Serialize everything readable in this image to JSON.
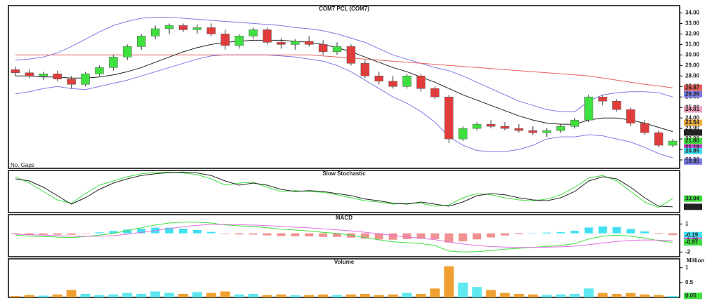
{
  "chart_data": [
    {
      "type": "candlestick",
      "title": "COM7  PCL  (COM7)",
      "note": "No. Gaps",
      "open": [
        28.6,
        28.3,
        28.0,
        28.2,
        27.7,
        27.2,
        28.2,
        28.8,
        29.8,
        30.8,
        31.8,
        32.5,
        32.8,
        32.4,
        32.6,
        32.0,
        30.9,
        31.8,
        32.4,
        31.2,
        31.0,
        31.3,
        31.0,
        30.3,
        30.8,
        29.2,
        28.0,
        27.5,
        27.0,
        28.0,
        26.8,
        26.0,
        22.0,
        23.0,
        23.4,
        23.2,
        23.0,
        22.8,
        22.6,
        22.8,
        23.2,
        23.8,
        26.0,
        25.6,
        24.8,
        23.5,
        22.6,
        21.4
      ],
      "high": [
        28.9,
        28.6,
        28.4,
        28.5,
        28.0,
        28.4,
        29.0,
        30.0,
        31.0,
        32.0,
        32.8,
        33.0,
        33.0,
        32.9,
        33.0,
        32.4,
        32.0,
        32.6,
        32.6,
        31.6,
        31.5,
        31.8,
        31.4,
        31.2,
        31.0,
        29.5,
        28.4,
        28.0,
        28.2,
        28.2,
        27.0,
        26.2,
        23.2,
        23.6,
        23.8,
        23.6,
        23.4,
        23.2,
        23.0,
        23.4,
        24.0,
        26.2,
        26.2,
        25.8,
        25.0,
        23.8,
        22.8,
        22.0
      ],
      "low": [
        28.0,
        27.8,
        27.6,
        27.5,
        26.8,
        27.0,
        28.0,
        28.5,
        29.5,
        30.5,
        31.5,
        32.0,
        32.2,
        32.0,
        31.8,
        30.5,
        30.6,
        31.5,
        31.0,
        30.6,
        30.5,
        30.8,
        30.0,
        30.0,
        29.0,
        27.8,
        27.2,
        26.8,
        26.8,
        26.5,
        25.8,
        21.6,
        21.8,
        22.8,
        23.0,
        22.8,
        22.6,
        22.4,
        22.2,
        22.6,
        23.0,
        23.6,
        25.2,
        24.6,
        23.2,
        22.4,
        21.2,
        21.2
      ],
      "close": [
        28.3,
        28.0,
        28.2,
        27.7,
        27.2,
        28.2,
        28.8,
        29.8,
        30.8,
        31.8,
        32.5,
        32.8,
        32.4,
        32.6,
        32.0,
        30.9,
        31.8,
        32.4,
        31.2,
        31.0,
        31.3,
        31.0,
        30.3,
        30.8,
        29.2,
        28.0,
        27.5,
        27.0,
        28.0,
        26.8,
        26.0,
        22.0,
        23.0,
        23.4,
        23.2,
        23.0,
        22.8,
        22.6,
        22.8,
        23.2,
        23.8,
        26.0,
        25.6,
        24.8,
        23.5,
        22.6,
        21.4,
        21.8
      ],
      "up_color": "#3ee03e",
      "down_color": "#e03c3c",
      "overlays": [
        {
          "color": "#7b7be6",
          "values": [
            29.5,
            29.6,
            29.8,
            30.2,
            30.8,
            31.5,
            32.2,
            32.8,
            33.2,
            33.5,
            33.6,
            33.6,
            33.5,
            33.4,
            33.3,
            33.2,
            33.1,
            33.0,
            32.9,
            32.8,
            32.6,
            32.5,
            32.3,
            32.0,
            31.6,
            31.2,
            30.6,
            30.0,
            29.6,
            29.2,
            28.8,
            28.5,
            28.0,
            27.4,
            26.8,
            26.2,
            25.6,
            25.2,
            24.8,
            24.6,
            24.6,
            25.6,
            26.2,
            26.4,
            26.5,
            26.5,
            26.4,
            26.0
          ]
        },
        {
          "color": "#7b7be6",
          "values": [
            26.3,
            26.5,
            26.8,
            27.0,
            26.8,
            26.7,
            27.0,
            27.3,
            27.6,
            28.0,
            28.4,
            28.8,
            29.2,
            29.6,
            29.9,
            30.0,
            30.0,
            30.0,
            30.0,
            29.9,
            29.8,
            29.6,
            29.4,
            29.0,
            28.4,
            27.6,
            26.8,
            26.0,
            25.4,
            24.6,
            23.6,
            22.2,
            21.4,
            20.9,
            20.8,
            20.8,
            21.0,
            21.4,
            22.0,
            22.2,
            22.2,
            22.4,
            22.3,
            22.0,
            21.7,
            21.2,
            20.6,
            20.2
          ]
        },
        {
          "color": "#e86060",
          "values": [
            30.0,
            30.0,
            30.0,
            30.0,
            30.0,
            30.0,
            30.0,
            30.0,
            30.0,
            30.0,
            30.0,
            30.0,
            30.0,
            30.0,
            30.0,
            30.0,
            30.0,
            30.0,
            30.0,
            30.0,
            30.0,
            30.0,
            29.9,
            29.8,
            29.7,
            29.6,
            29.5,
            29.4,
            29.3,
            29.2,
            29.1,
            29.0,
            28.9,
            28.8,
            28.7,
            28.6,
            28.5,
            28.4,
            28.3,
            28.2,
            28.1,
            28.0,
            27.8,
            27.6,
            27.4,
            27.2,
            27.05,
            26.87
          ]
        },
        {
          "color": "#222222",
          "values": [
            28.0,
            28.0,
            27.9,
            27.9,
            27.8,
            27.8,
            27.9,
            28.1,
            28.4,
            28.8,
            29.3,
            29.8,
            30.3,
            30.7,
            31.0,
            31.2,
            31.3,
            31.4,
            31.4,
            31.4,
            31.3,
            31.2,
            31.0,
            30.7,
            30.3,
            29.8,
            29.3,
            28.8,
            28.4,
            27.9,
            27.4,
            26.8,
            26.2,
            25.7,
            25.2,
            24.7,
            24.2,
            23.8,
            23.5,
            23.4,
            23.4,
            23.8,
            24.0,
            24.0,
            23.8,
            23.5,
            23.1,
            22.7
          ]
        }
      ],
      "ylim": [
        19.2,
        34.7
      ],
      "yticks": [
        {
          "value": 20,
          "label": "20.00"
        },
        {
          "value": 21,
          "label": "21.00"
        },
        {
          "value": 22,
          "label": "22.00"
        },
        {
          "value": 23,
          "label": "23.00"
        },
        {
          "value": 24,
          "label": "24.00"
        },
        {
          "value": 25,
          "label": "25.00"
        },
        {
          "value": 26,
          "label": "26.00"
        },
        {
          "value": 27,
          "label": "27.00"
        },
        {
          "value": 28,
          "label": "28.00"
        },
        {
          "value": 29,
          "label": "29.00"
        },
        {
          "value": 30,
          "label": "30.00"
        },
        {
          "value": 31,
          "label": "31.00"
        },
        {
          "value": 32,
          "label": "32.00"
        },
        {
          "value": 33,
          "label": "33.00"
        },
        {
          "value": 34,
          "label": "34.00"
        }
      ],
      "tags": [
        {
          "value": 26.87,
          "color": "#e86060"
        },
        {
          "value": 26.26,
          "color": "#7b7be6"
        },
        {
          "value": 24.81,
          "color": "#f0a0c0"
        },
        {
          "value": 23.54,
          "color": "#f0b040"
        },
        {
          "value": 22.61,
          "color": "#222222"
        },
        {
          "value": 21.8,
          "label": "21.80",
          "color": "#3ee03e"
        },
        {
          "value": 21.19,
          "color": "#d040d0"
        },
        {
          "value": 20.85,
          "color": "#40e0f0"
        },
        {
          "value": 19.85,
          "color": "#7b7be6"
        }
      ]
    },
    {
      "type": "line",
      "title": "Slow  Stochastic",
      "series": [
        {
          "color": "#3ee03e",
          "values": [
            85,
            70,
            50,
            30,
            22,
            45,
            65,
            75,
            85,
            92,
            95,
            96,
            94,
            90,
            80,
            65,
            70,
            72,
            60,
            50,
            52,
            50,
            48,
            42,
            35,
            28,
            25,
            20,
            22,
            22,
            15,
            18,
            35,
            45,
            42,
            35,
            30,
            28,
            32,
            42,
            60,
            82,
            88,
            75,
            50,
            25,
            12,
            33.04
          ]
        },
        {
          "color": "#222222",
          "values": [
            80,
            75,
            60,
            40,
            20,
            35,
            55,
            70,
            80,
            88,
            92,
            95,
            96,
            94,
            88,
            75,
            65,
            70,
            65,
            55,
            50,
            52,
            50,
            45,
            40,
            32,
            28,
            22,
            20,
            25,
            20,
            15,
            25,
            40,
            45,
            42,
            35,
            30,
            28,
            35,
            50,
            75,
            85,
            80,
            60,
            35,
            15,
            13.54
          ]
        }
      ],
      "ylim": [
        0,
        100
      ],
      "tags": [
        {
          "value": 33.04,
          "color": "#3ee03e"
        },
        {
          "value": 13.54,
          "color": "#222222"
        }
      ]
    },
    {
      "type": "macd",
      "title": "MACD",
      "series": [
        {
          "color": "#3ee03e",
          "values": [
            -0.2,
            -0.3,
            -0.35,
            -0.4,
            -0.45,
            -0.35,
            -0.2,
            0,
            0.3,
            0.6,
            0.9,
            1.1,
            1.2,
            1.2,
            1.1,
            0.9,
            0.8,
            0.75,
            0.6,
            0.45,
            0.35,
            0.25,
            0.1,
            0,
            -0.2,
            -0.45,
            -0.7,
            -0.9,
            -1.0,
            -1.1,
            -1.3,
            -1.9,
            -2.0,
            -1.95,
            -1.85,
            -1.7,
            -1.6,
            -1.5,
            -1.4,
            -1.3,
            -1.1,
            -0.6,
            -0.3,
            -0.2,
            -0.3,
            -0.5,
            -0.8,
            -0.97
          ]
        },
        {
          "color": "#e070e0",
          "values": [
            -0.1,
            -0.15,
            -0.2,
            -0.25,
            -0.3,
            -0.32,
            -0.3,
            -0.25,
            -0.1,
            0.1,
            0.3,
            0.5,
            0.7,
            0.85,
            0.95,
            0.95,
            0.92,
            0.88,
            0.82,
            0.74,
            0.66,
            0.58,
            0.48,
            0.38,
            0.26,
            0.12,
            -0.05,
            -0.22,
            -0.38,
            -0.52,
            -0.68,
            -0.92,
            -1.14,
            -1.3,
            -1.41,
            -1.47,
            -1.5,
            -1.5,
            -1.48,
            -1.44,
            -1.37,
            -1.22,
            -1.04,
            -0.87,
            -0.76,
            -0.71,
            -0.73,
            -0.78
          ]
        }
      ],
      "histogram": {
        "up_color": "#40e0f0",
        "down_color": "#f09090",
        "values": [
          -0.1,
          -0.15,
          -0.15,
          -0.15,
          -0.15,
          -0.03,
          0.1,
          0.25,
          0.4,
          0.5,
          0.6,
          0.6,
          0.5,
          0.35,
          0.15,
          -0.05,
          -0.12,
          -0.13,
          -0.22,
          -0.29,
          -0.31,
          -0.33,
          -0.38,
          -0.38,
          -0.46,
          -0.57,
          -0.65,
          -0.68,
          -0.62,
          -0.58,
          -0.62,
          -0.98,
          -0.86,
          -0.65,
          -0.44,
          -0.23,
          -0.1,
          0,
          0.08,
          0.14,
          0.27,
          0.62,
          0.74,
          0.67,
          0.46,
          0.21,
          -0.07,
          -0.19
        ]
      },
      "ylim": [
        -2.5,
        2
      ],
      "yticks": [
        1,
        -2
      ],
      "tags": [
        {
          "value": -0.19,
          "color": "#40e0f0"
        },
        {
          "value": -0.78,
          "color": "#e070e0"
        },
        {
          "value": -0.97,
          "color": "#3ee03e"
        }
      ]
    },
    {
      "type": "volume",
      "title": "Volume",
      "unit_label": "Million",
      "values": [
        0.05,
        0.08,
        0.06,
        0.1,
        0.25,
        0.12,
        0.08,
        0.1,
        0.15,
        0.12,
        0.2,
        0.15,
        0.12,
        0.18,
        0.15,
        0.2,
        0.1,
        0.12,
        0.08,
        0.1,
        0.07,
        0.08,
        0.1,
        0.08,
        0.1,
        0.12,
        0.08,
        0.1,
        0.15,
        0.12,
        0.3,
        1.05,
        0.5,
        0.35,
        0.25,
        0.15,
        0.12,
        0.1,
        0.08,
        0.1,
        0.12,
        0.3,
        0.15,
        0.12,
        0.15,
        0.1,
        0.08,
        0.05
      ],
      "up_color": "#5ee8f0",
      "down_color": "#f0a030",
      "ylim": [
        0,
        1.3
      ],
      "yticks": [
        1,
        0.5
      ],
      "tags": [
        {
          "value": 0.05,
          "color": "#3ee03e"
        }
      ]
    }
  ]
}
